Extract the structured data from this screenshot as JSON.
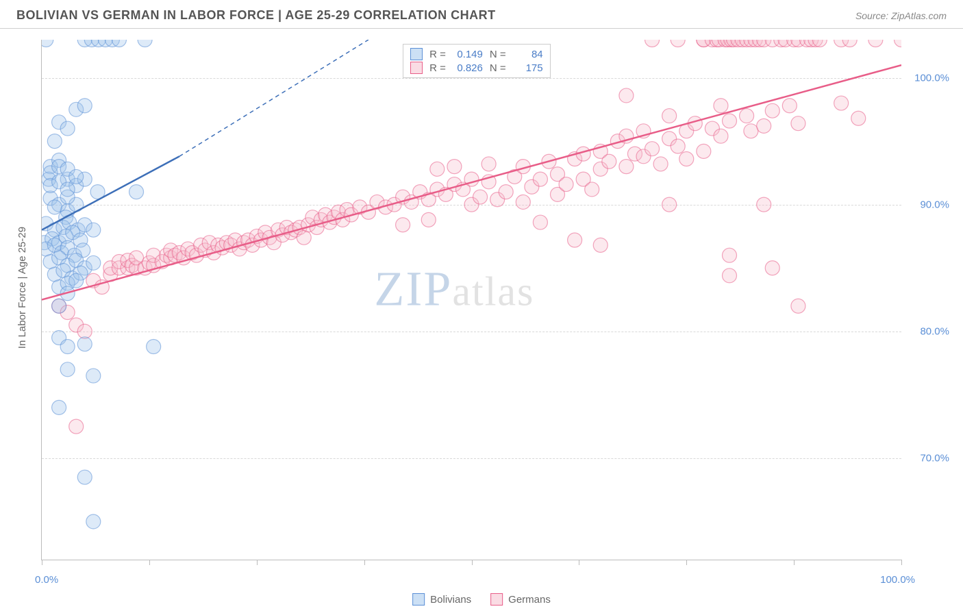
{
  "header": {
    "title": "BOLIVIAN VS GERMAN IN LABOR FORCE | AGE 25-29 CORRELATION CHART",
    "source": "Source: ZipAtlas.com"
  },
  "y_axis_title": "In Labor Force | Age 25-29",
  "watermark": {
    "zip": "ZIP",
    "atlas": "atlas"
  },
  "chart": {
    "type": "scatter",
    "xlim": [
      0,
      100
    ],
    "ylim": [
      62,
      103
    ],
    "yticks": [
      70,
      80,
      90,
      100
    ],
    "ytick_labels": [
      "70.0%",
      "80.0%",
      "90.0%",
      "100.0%"
    ],
    "xticks": [
      0,
      12.5,
      25,
      37.5,
      50,
      62.5,
      75,
      87.5,
      100
    ],
    "xaxis_label_left": "0.0%",
    "xaxis_label_right": "100.0%",
    "background_color": "#ffffff",
    "grid_color": "#d8d8d8",
    "marker_radius": 10.5,
    "marker_opacity": 0.35,
    "series": {
      "bolivians": {
        "label": "Bolivians",
        "color_fill": "#9dc3ea",
        "color_stroke": "#5b8fd6",
        "R": "0.149",
        "N": "84",
        "regression": {
          "x1": 0,
          "y1": 88.0,
          "x2": 16,
          "y2": 93.8,
          "dash_x2": 38,
          "dash_y2": 103,
          "stroke_width": 2.5,
          "color": "#3d6fb8"
        },
        "points": [
          [
            0.5,
            103
          ],
          [
            5,
            103
          ],
          [
            5.8,
            103
          ],
          [
            6.6,
            103
          ],
          [
            7.4,
            103
          ],
          [
            8.2,
            103
          ],
          [
            9,
            103
          ],
          [
            12,
            103
          ],
          [
            2,
            96.5
          ],
          [
            3,
            96
          ],
          [
            1.5,
            95
          ],
          [
            4,
            97.5
          ],
          [
            5,
            97.8
          ],
          [
            1,
            93
          ],
          [
            0.8,
            92
          ],
          [
            2,
            93.5
          ],
          [
            3,
            92
          ],
          [
            4,
            91.5
          ],
          [
            5,
            92
          ],
          [
            6.5,
            91
          ],
          [
            11,
            91
          ],
          [
            1,
            90.5
          ],
          [
            2,
            90
          ],
          [
            3,
            89.5
          ],
          [
            4,
            90
          ],
          [
            3,
            90.6
          ],
          [
            1.5,
            89.8
          ],
          [
            2.8,
            89
          ],
          [
            0.5,
            88.5
          ],
          [
            1.5,
            88
          ],
          [
            2.5,
            88.2
          ],
          [
            3.2,
            88.6
          ],
          [
            4.2,
            88
          ],
          [
            5,
            88.4
          ],
          [
            6,
            88
          ],
          [
            0.3,
            87
          ],
          [
            1.2,
            87.3
          ],
          [
            2,
            87
          ],
          [
            2.8,
            87.5
          ],
          [
            3.6,
            87.8
          ],
          [
            4.5,
            87.2
          ],
          [
            0.5,
            86.5
          ],
          [
            1.5,
            86.8
          ],
          [
            2.3,
            86.2
          ],
          [
            3,
            86.6
          ],
          [
            3.8,
            86
          ],
          [
            4.8,
            86.4
          ],
          [
            1,
            85.5
          ],
          [
            2,
            85.8
          ],
          [
            3,
            85.2
          ],
          [
            4,
            85.6
          ],
          [
            5,
            85
          ],
          [
            6,
            85.4
          ],
          [
            1.5,
            84.5
          ],
          [
            2.5,
            84.8
          ],
          [
            3.5,
            84.2
          ],
          [
            4.5,
            84.6
          ],
          [
            1,
            92.5
          ],
          [
            2,
            93
          ],
          [
            3,
            92.8
          ],
          [
            4,
            92.2
          ],
          [
            1,
            91.5
          ],
          [
            2,
            91.8
          ],
          [
            3,
            91.2
          ],
          [
            2,
            83.5
          ],
          [
            3,
            83.8
          ],
          [
            4,
            84
          ],
          [
            2,
            82
          ],
          [
            3,
            83
          ],
          [
            5,
            79
          ],
          [
            2,
            79.5
          ],
          [
            3,
            78.8
          ],
          [
            13,
            78.8
          ],
          [
            3,
            77
          ],
          [
            6,
            76.5
          ],
          [
            2,
            74
          ],
          [
            5,
            68.5
          ],
          [
            6,
            65
          ]
        ]
      },
      "germans": {
        "label": "Germans",
        "color_fill": "#f5c0ce",
        "color_stroke": "#e85d88",
        "R": "0.826",
        "N": "175",
        "regression": {
          "x1": 0,
          "y1": 82.5,
          "x2": 100,
          "y2": 101,
          "stroke_width": 2.5,
          "color": "#e85d88"
        },
        "points": [
          [
            2,
            82
          ],
          [
            3,
            81.5
          ],
          [
            4,
            80.5
          ],
          [
            5,
            80
          ],
          [
            4,
            72.5
          ],
          [
            6,
            84
          ],
          [
            7,
            83.5
          ],
          [
            8,
            84.5
          ],
          [
            8,
            85
          ],
          [
            9,
            85
          ],
          [
            9,
            85.5
          ],
          [
            10,
            85
          ],
          [
            10,
            85.6
          ],
          [
            10.5,
            85.2
          ],
          [
            11,
            85
          ],
          [
            11,
            85.8
          ],
          [
            12,
            85
          ],
          [
            12.5,
            85.4
          ],
          [
            13,
            85.2
          ],
          [
            13,
            86
          ],
          [
            14,
            85.5
          ],
          [
            14.5,
            86
          ],
          [
            15,
            85.8
          ],
          [
            15,
            86.4
          ],
          [
            15.5,
            86
          ],
          [
            16,
            86.2
          ],
          [
            16.5,
            85.8
          ],
          [
            17,
            86.5
          ],
          [
            17.5,
            86.2
          ],
          [
            18,
            86
          ],
          [
            18.5,
            86.8
          ],
          [
            19,
            86.4
          ],
          [
            19.5,
            87
          ],
          [
            20,
            86.2
          ],
          [
            20.5,
            86.8
          ],
          [
            21,
            86.6
          ],
          [
            21.5,
            87
          ],
          [
            22,
            86.8
          ],
          [
            22.5,
            87.2
          ],
          [
            23,
            86.5
          ],
          [
            23.5,
            87
          ],
          [
            24,
            87.2
          ],
          [
            24.5,
            86.8
          ],
          [
            25,
            87.5
          ],
          [
            25.5,
            87.2
          ],
          [
            26,
            87.8
          ],
          [
            26.5,
            87.4
          ],
          [
            27,
            87
          ],
          [
            27.5,
            88
          ],
          [
            28,
            87.6
          ],
          [
            28.5,
            88.2
          ],
          [
            29,
            87.8
          ],
          [
            29.5,
            88
          ],
          [
            30,
            88.2
          ],
          [
            30.5,
            87.4
          ],
          [
            31,
            88.4
          ],
          [
            31.5,
            89
          ],
          [
            32,
            88.2
          ],
          [
            32.5,
            88.8
          ],
          [
            33,
            89.2
          ],
          [
            33.5,
            88.6
          ],
          [
            34,
            89
          ],
          [
            34.5,
            89.4
          ],
          [
            35,
            88.8
          ],
          [
            35.5,
            89.6
          ],
          [
            36,
            89.2
          ],
          [
            37,
            89.8
          ],
          [
            38,
            89.4
          ],
          [
            39,
            90.2
          ],
          [
            40,
            89.8
          ],
          [
            41,
            90
          ],
          [
            42,
            90.6
          ],
          [
            42,
            88.4
          ],
          [
            43,
            90.2
          ],
          [
            44,
            91
          ],
          [
            45,
            88.8
          ],
          [
            45,
            90.4
          ],
          [
            46,
            91.2
          ],
          [
            46,
            92.8
          ],
          [
            47,
            90.8
          ],
          [
            48,
            91.6
          ],
          [
            48,
            93
          ],
          [
            49,
            91.2
          ],
          [
            50,
            90
          ],
          [
            50,
            92
          ],
          [
            51,
            90.6
          ],
          [
            52,
            91.8
          ],
          [
            52,
            93.2
          ],
          [
            53,
            90.4
          ],
          [
            54,
            91
          ],
          [
            55,
            92.2
          ],
          [
            56,
            90.2
          ],
          [
            56,
            93
          ],
          [
            57,
            91.4
          ],
          [
            58,
            88.6
          ],
          [
            58,
            92
          ],
          [
            59,
            93.4
          ],
          [
            60,
            90.8
          ],
          [
            60,
            92.4
          ],
          [
            61,
            91.6
          ],
          [
            62,
            93.6
          ],
          [
            63,
            92
          ],
          [
            63,
            94
          ],
          [
            64,
            91.2
          ],
          [
            65,
            92.8
          ],
          [
            65,
            94.2
          ],
          [
            66,
            93.4
          ],
          [
            67,
            95
          ],
          [
            68,
            93
          ],
          [
            68,
            95.4
          ],
          [
            68,
            98.6
          ],
          [
            69,
            94
          ],
          [
            70,
            93.8
          ],
          [
            70,
            95.8
          ],
          [
            71,
            94.4
          ],
          [
            71,
            103
          ],
          [
            72,
            93.2
          ],
          [
            73,
            95.2
          ],
          [
            73,
            97
          ],
          [
            73,
            90
          ],
          [
            74,
            94.6
          ],
          [
            74,
            103
          ],
          [
            75,
            93.6
          ],
          [
            75,
            95.8
          ],
          [
            76,
            96.4
          ],
          [
            77,
            94.2
          ],
          [
            77,
            103
          ],
          [
            77,
            103
          ],
          [
            78,
            96
          ],
          [
            78,
            103
          ],
          [
            78.5,
            103
          ],
          [
            78.8,
            103
          ],
          [
            79,
            95.4
          ],
          [
            79,
            97.8
          ],
          [
            79.5,
            103
          ],
          [
            79.8,
            103
          ],
          [
            80,
            96.6
          ],
          [
            80,
            86
          ],
          [
            80,
            84.4
          ],
          [
            80.2,
            103
          ],
          [
            80.5,
            103
          ],
          [
            81,
            103
          ],
          [
            81.5,
            103
          ],
          [
            82,
            97
          ],
          [
            82.5,
            95.8
          ],
          [
            82,
            103
          ],
          [
            82.5,
            103
          ],
          [
            83,
            103
          ],
          [
            83.5,
            103
          ],
          [
            84,
            103
          ],
          [
            84,
            96.2
          ],
          [
            84,
            90
          ],
          [
            85,
            103
          ],
          [
            85,
            97.4
          ],
          [
            85,
            85
          ],
          [
            86,
            103
          ],
          [
            86.5,
            103
          ],
          [
            87,
            97.8
          ],
          [
            87.5,
            103
          ],
          [
            88,
            96.4
          ],
          [
            88,
            103
          ],
          [
            88,
            82
          ],
          [
            89,
            103
          ],
          [
            89.5,
            103
          ],
          [
            90,
            103
          ],
          [
            90.5,
            103
          ],
          [
            93,
            98
          ],
          [
            93,
            103
          ],
          [
            94,
            103
          ],
          [
            95,
            96.8
          ],
          [
            97,
            103
          ],
          [
            100,
            103
          ],
          [
            62,
            87.2
          ],
          [
            65,
            86.8
          ]
        ]
      }
    }
  },
  "legend_top": {
    "rows": [
      {
        "swatch_fill": "#cce0f5",
        "swatch_stroke": "#5b8fd6",
        "r_label": "R =",
        "r_val": "0.149",
        "n_label": "N =",
        "n_val": "84"
      },
      {
        "swatch_fill": "#fadce4",
        "swatch_stroke": "#e85d88",
        "r_label": "R =",
        "r_val": "0.826",
        "n_label": "N =",
        "n_val": "175"
      }
    ]
  },
  "legend_bottom": {
    "items": [
      {
        "swatch_fill": "#cce0f5",
        "swatch_stroke": "#5b8fd6",
        "label": "Bolivians"
      },
      {
        "swatch_fill": "#fadce4",
        "swatch_stroke": "#e85d88",
        "label": "Germans"
      }
    ]
  }
}
